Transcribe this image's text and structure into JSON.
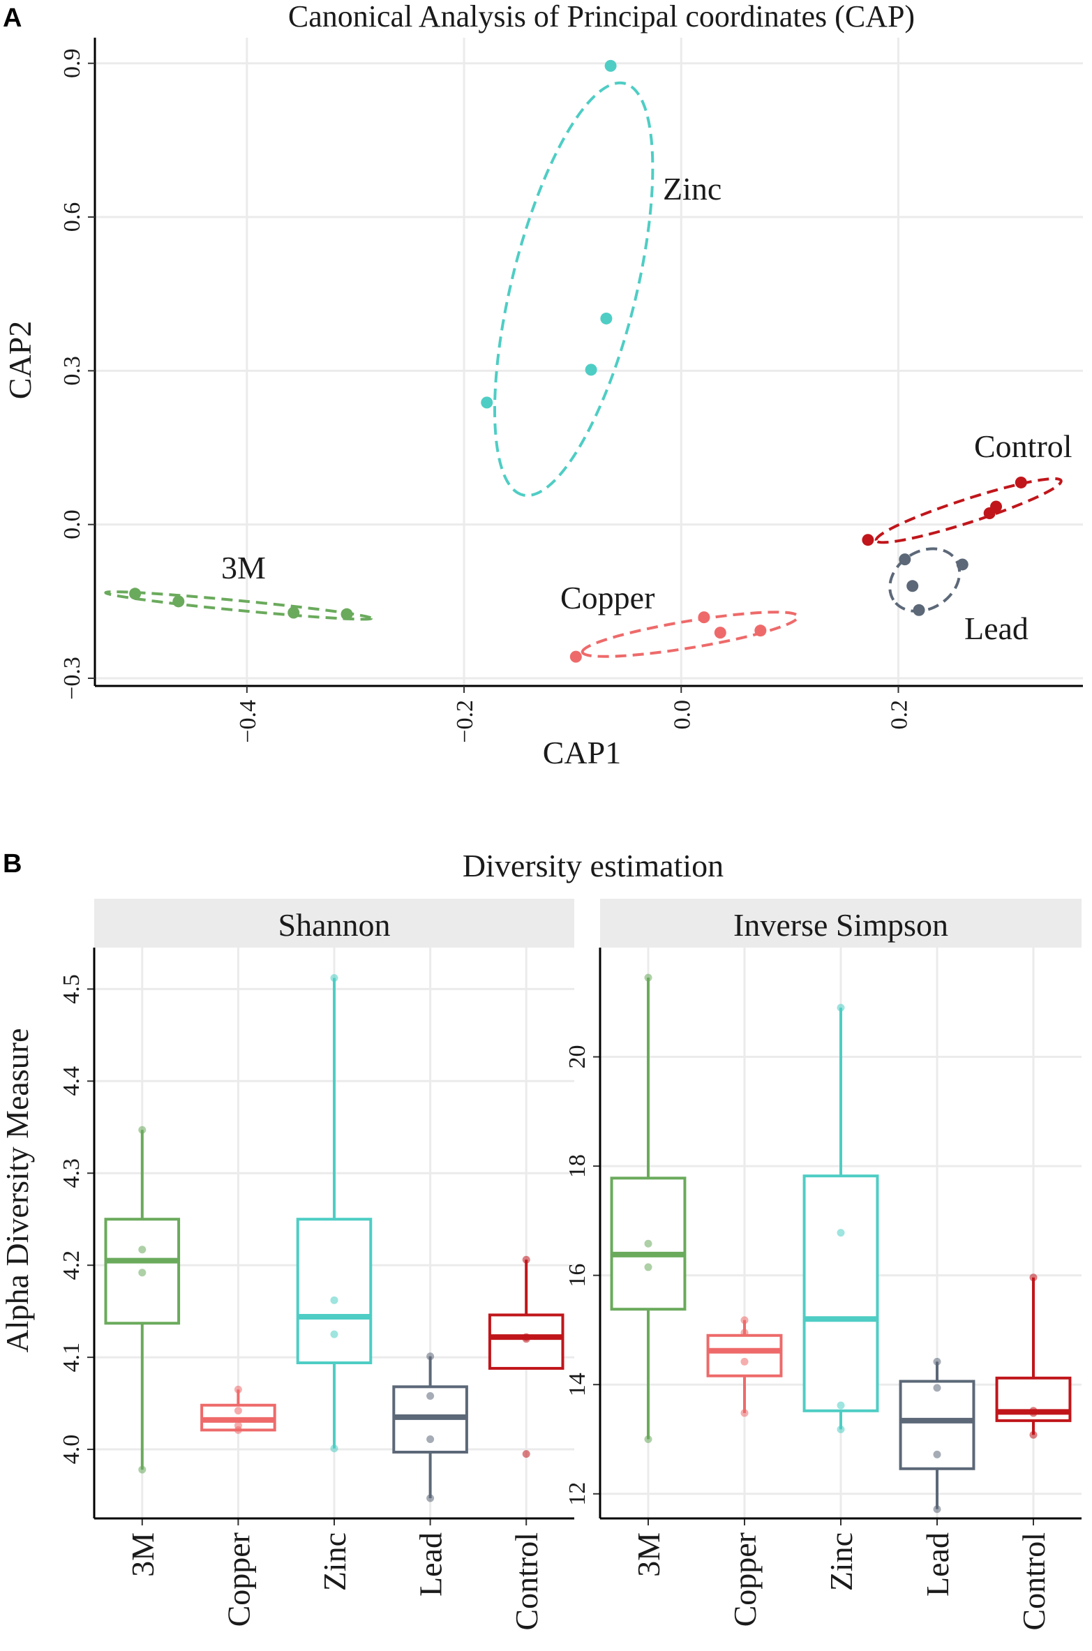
{
  "panel_a": {
    "label": "A",
    "chart_data": {
      "type": "scatter",
      "title": "Canonical Analysis of Principal coordinates (CAP)",
      "xlabel": "CAP1",
      "ylabel": "CAP2",
      "xlim": [
        -0.54,
        0.37
      ],
      "ylim": [
        -0.315,
        0.95
      ],
      "xticks": [
        -0.4,
        -0.2,
        0.0,
        0.2
      ],
      "xtick_labels": [
        "−0.4",
        "−0.2",
        "0.0",
        "0.2"
      ],
      "yticks": [
        -0.3,
        0.0,
        0.3,
        0.6,
        0.9
      ],
      "ytick_labels": [
        "−0.3",
        "0.0",
        "0.3",
        "0.6",
        "0.9"
      ],
      "grid": true,
      "series": [
        {
          "name": "3M",
          "color": "#6aaa5c",
          "ellipse": "dashed",
          "points": [
            [
              -0.503,
              -0.135
            ],
            [
              -0.463,
              -0.15
            ],
            [
              -0.357,
              -0.172
            ],
            [
              -0.308,
              -0.175
            ]
          ]
        },
        {
          "name": "Copper",
          "color": "#ee6a6a",
          "ellipse": "dashed",
          "points": [
            [
              -0.097,
              -0.258
            ],
            [
              0.021,
              -0.181
            ],
            [
              0.036,
              -0.211
            ],
            [
              0.073,
              -0.207
            ]
          ]
        },
        {
          "name": "Zinc",
          "color": "#4ecdc4",
          "ellipse": "dashed",
          "points": [
            [
              -0.179,
              0.238
            ],
            [
              -0.083,
              0.302
            ],
            [
              -0.069,
              0.402
            ],
            [
              -0.065,
              0.895
            ]
          ]
        },
        {
          "name": "Lead",
          "color": "#5c6878",
          "ellipse": "dashed",
          "points": [
            [
              0.206,
              -0.068
            ],
            [
              0.213,
              -0.12
            ],
            [
              0.219,
              -0.167
            ],
            [
              0.259,
              -0.078
            ]
          ]
        },
        {
          "name": "Control",
          "color": "#c0161b",
          "ellipse": "dashed",
          "points": [
            [
              0.172,
              -0.03
            ],
            [
              0.284,
              0.022
            ],
            [
              0.29,
              0.035
            ],
            [
              0.313,
              0.082
            ]
          ]
        }
      ],
      "annotations": [
        "Zinc",
        "Control",
        "3M",
        "Copper",
        "Lead"
      ]
    }
  },
  "panel_b": {
    "label": "B",
    "title": "Diversity estimation",
    "ylabel": "Alpha Diversity Measure",
    "categories": [
      "3M",
      "Copper",
      "Zinc",
      "Lead",
      "Control"
    ],
    "colors": [
      "#6aaa5c",
      "#ee6a6a",
      "#4ecdc4",
      "#5c6878",
      "#c0161b"
    ],
    "chart_data": [
      {
        "type": "box",
        "title": "Shannon",
        "categories": [
          "3M",
          "Copper",
          "Zinc",
          "Lead",
          "Control"
        ],
        "ylim": [
          3.925,
          4.545
        ],
        "yticks": [
          4.0,
          4.1,
          4.2,
          4.3,
          4.4,
          4.5
        ],
        "ytick_labels": [
          "4.0",
          "4.1",
          "4.2",
          "4.3",
          "4.4",
          "4.5"
        ],
        "boxes": [
          {
            "q1": 4.137,
            "median": 4.205,
            "q3": 4.25,
            "min": 3.978,
            "max": 4.347
          },
          {
            "q1": 4.021,
            "median": 4.032,
            "q3": 4.048,
            "min": 4.021,
            "max": 4.065
          },
          {
            "q1": 4.094,
            "median": 4.144,
            "q3": 4.25,
            "min": 4.001,
            "max": 4.512
          },
          {
            "q1": 3.997,
            "median": 4.035,
            "q3": 4.068,
            "min": 3.947,
            "max": 4.101
          },
          {
            "q1": 4.088,
            "median": 4.122,
            "q3": 4.146,
            "min": 4.088,
            "max": 4.206
          }
        ],
        "points": [
          [
            3.978,
            4.192,
            4.217,
            4.347
          ],
          [
            4.021,
            4.026,
            4.042,
            4.065
          ],
          [
            4.001,
            4.125,
            4.162,
            4.512
          ],
          [
            3.947,
            4.011,
            4.058,
            4.101
          ],
          [
            3.995,
            4.12,
            4.122,
            4.206
          ]
        ]
      },
      {
        "type": "box",
        "title": "Inverse Simpson",
        "categories": [
          "3M",
          "Copper",
          "Zinc",
          "Lead",
          "Control"
        ],
        "ylim": [
          11.55,
          22.0
        ],
        "yticks": [
          12,
          14,
          16,
          18,
          20
        ],
        "ytick_labels": [
          "12",
          "14",
          "16",
          "18",
          "20"
        ],
        "boxes": [
          {
            "q1": 15.38,
            "median": 16.38,
            "q3": 17.78,
            "min": 13.0,
            "max": 21.45
          },
          {
            "q1": 14.16,
            "median": 14.62,
            "q3": 14.9,
            "min": 13.48,
            "max": 15.18
          },
          {
            "q1": 13.52,
            "median": 15.2,
            "q3": 17.82,
            "min": 13.18,
            "max": 20.9
          },
          {
            "q1": 12.46,
            "median": 13.34,
            "q3": 14.06,
            "min": 11.72,
            "max": 14.42
          },
          {
            "q1": 13.34,
            "median": 13.5,
            "q3": 14.12,
            "min": 13.08,
            "max": 15.96
          }
        ],
        "points": [
          [
            13.0,
            16.15,
            16.58,
            21.45
          ],
          [
            13.48,
            14.42,
            14.95,
            15.18
          ],
          [
            13.18,
            13.62,
            16.78,
            20.9
          ],
          [
            11.72,
            12.72,
            13.94,
            14.42
          ],
          [
            13.08,
            13.48,
            13.52,
            15.96
          ]
        ]
      }
    ]
  }
}
